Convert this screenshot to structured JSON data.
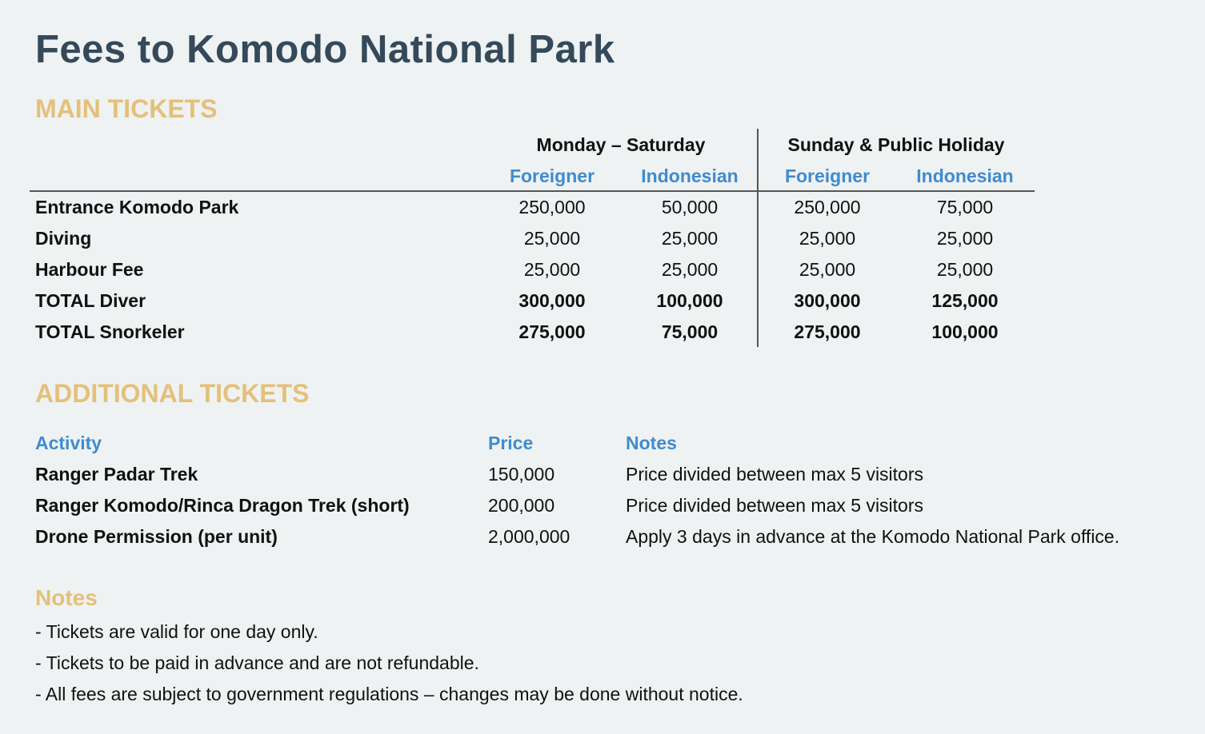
{
  "title": "Fees to Komodo National Park",
  "main": {
    "heading": "MAIN TICKETS",
    "group1": "Monday – Saturday",
    "group2": "Sunday & Public Holiday",
    "sub": [
      "Foreigner",
      "Indonesian",
      "Foreigner",
      "Indonesian"
    ],
    "rows": [
      {
        "label": "Entrance Komodo Park",
        "v": [
          "250,000",
          "50,000",
          "250,000",
          "75,000"
        ],
        "bold": false
      },
      {
        "label": "Diving",
        "v": [
          "25,000",
          "25,000",
          "25,000",
          "25,000"
        ],
        "bold": false
      },
      {
        "label": "Harbour Fee",
        "v": [
          "25,000",
          "25,000",
          "25,000",
          "25,000"
        ],
        "bold": false
      },
      {
        "label": "TOTAL Diver",
        "v": [
          "300,000",
          "100,000",
          "300,000",
          "125,000"
        ],
        "bold": true
      },
      {
        "label": "TOTAL Snorkeler",
        "v": [
          "275,000",
          "75,000",
          "275,000",
          "100,000"
        ],
        "bold": true
      }
    ]
  },
  "additional": {
    "heading": "ADDITIONAL TICKETS",
    "headers": {
      "activity": "Activity",
      "price": "Price",
      "notes": "Notes"
    },
    "rows": [
      {
        "activity": "Ranger Padar Trek",
        "price": "150,000",
        "notes": "Price divided between max 5 visitors"
      },
      {
        "activity": "Ranger Komodo/Rinca Dragon Trek (short)",
        "price": "200,000",
        "notes": "Price divided between max 5 visitors"
      },
      {
        "activity": "Drone Permission (per unit)",
        "price": "2,000,000",
        "notes": "Apply 3 days in advance at the Komodo National Park office."
      }
    ]
  },
  "notes": {
    "heading": "Notes",
    "items": [
      "- Tickets are valid for one day only.",
      "- Tickets to be paid in advance and are not refundable.",
      "- All fees are subject to government regulations – changes may be done without notice."
    ]
  }
}
